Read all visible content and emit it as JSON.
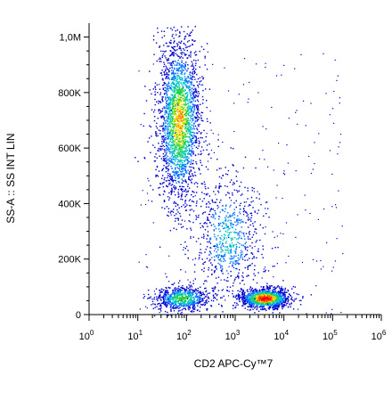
{
  "chart_data": {
    "type": "scatter",
    "style": "flow-cytometry density dot plot",
    "xlabel": "CD2 APC-Cy™7",
    "ylabel": "SS-A :: SS INT LIN",
    "x_scale": "log",
    "xlim": [
      1,
      1000000
    ],
    "ylim": [
      0,
      1050000
    ],
    "x_ticks": [
      {
        "value": 1,
        "base": "10",
        "exp": "0"
      },
      {
        "value": 10,
        "base": "10",
        "exp": "1"
      },
      {
        "value": 100,
        "base": "10",
        "exp": "2"
      },
      {
        "value": 1000,
        "base": "10",
        "exp": "3"
      },
      {
        "value": 10000,
        "base": "10",
        "exp": "4"
      },
      {
        "value": 100000,
        "base": "10",
        "exp": "5"
      },
      {
        "value": 1000000,
        "base": "10",
        "exp": "6"
      }
    ],
    "y_ticks": [
      {
        "value": 0,
        "label": "0"
      },
      {
        "value": 200000,
        "label": "200K"
      },
      {
        "value": 400000,
        "label": "400K"
      },
      {
        "value": 600000,
        "label": "600K"
      },
      {
        "value": 800000,
        "label": "800K"
      },
      {
        "value": 1000000,
        "label": "1,0M"
      }
    ],
    "density_colors": [
      "#0000cc",
      "#0070ff",
      "#00c8c8",
      "#20d040",
      "#f0e000",
      "#ff7000",
      "#ff0000"
    ],
    "populations": [
      {
        "name_visible": false,
        "x_center": 70,
        "y_center": 700000,
        "x_spread_decades": 0.22,
        "y_spread": 150000,
        "points": 2400,
        "peak_density": 0.7
      },
      {
        "name_visible": false,
        "x_center": 80,
        "y_center": 60000,
        "x_spread_decades": 0.28,
        "y_spread": 22000,
        "points": 700,
        "peak_density": 0.55
      },
      {
        "name_visible": false,
        "x_center": 4000,
        "y_center": 60000,
        "x_spread_decades": 0.25,
        "y_spread": 18000,
        "points": 1300,
        "peak_density": 1.0
      },
      {
        "name_visible": false,
        "x_center": 700,
        "y_center": 280000,
        "x_spread_decades": 0.35,
        "y_spread": 110000,
        "points": 700,
        "peak_density": 0.35
      }
    ]
  }
}
